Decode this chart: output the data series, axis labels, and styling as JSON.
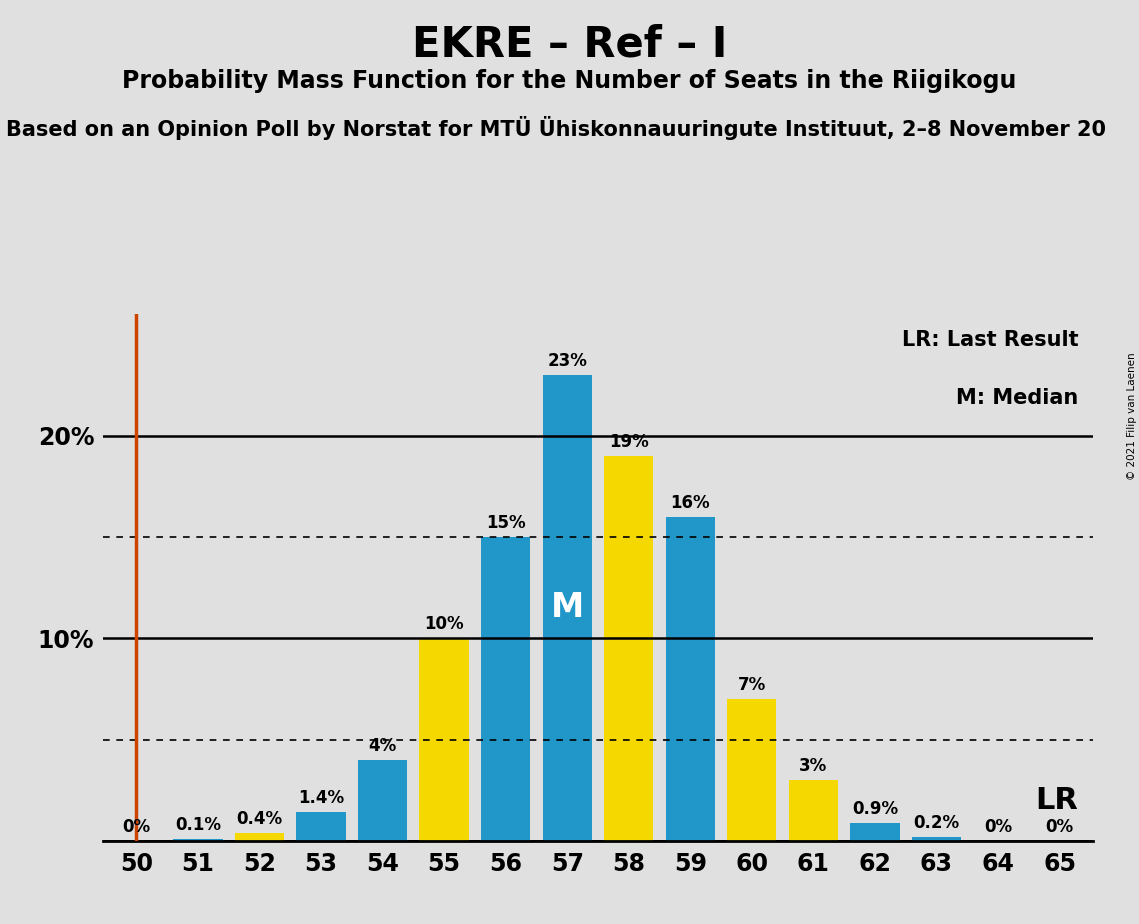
{
  "title": "EKRE – Ref – I",
  "subtitle": "Probability Mass Function for the Number of Seats in the Riigikogu",
  "source_line": "Based on an Opinion Poll by Norstat for MTÜ Ühiskonnauuringute Instituut, 2–8 November 20",
  "copyright": "© 2021 Filip van Laenen",
  "x_seats": [
    50,
    51,
    52,
    53,
    54,
    55,
    56,
    57,
    58,
    59,
    60,
    61,
    62,
    63,
    64,
    65
  ],
  "values": [
    0.0,
    0.1,
    0.4,
    1.4,
    4.0,
    10.0,
    15.0,
    23.0,
    19.0,
    16.0,
    7.0,
    3.0,
    0.9,
    0.2,
    0.0,
    0.0
  ],
  "bar_colors": [
    "#2196c8",
    "#2196c8",
    "#f5d800",
    "#2196c8",
    "#2196c8",
    "#f5d800",
    "#2196c8",
    "#2196c8",
    "#f5d800",
    "#2196c8",
    "#f5d800",
    "#f5d800",
    "#2196c8",
    "#2196c8",
    "#2196c8",
    "#2196c8"
  ],
  "label_texts": [
    "0%",
    "0.1%",
    "0.4%",
    "1.4%",
    "4%",
    "10%",
    "15%",
    "23%",
    "19%",
    "16%",
    "7%",
    "3%",
    "0.9%",
    "0.2%",
    "0%",
    "0%"
  ],
  "median_seat": 57,
  "median_label": "M",
  "lr_seat": 50,
  "lr_label": "LR",
  "vline_color": "#cc4400",
  "background_color": "#e0e0e0",
  "plot_bg_color": "#e0e0e0",
  "solid_hlines": [
    10,
    20
  ],
  "dotted_hlines": [
    5,
    15
  ],
  "ylim": [
    0,
    26
  ],
  "ytick_positions": [
    0,
    10,
    20
  ],
  "legend_lr": "LR: Last Result",
  "legend_m": "M: Median",
  "title_fontsize": 30,
  "subtitle_fontsize": 17,
  "source_fontsize": 15,
  "bar_width": 0.8
}
